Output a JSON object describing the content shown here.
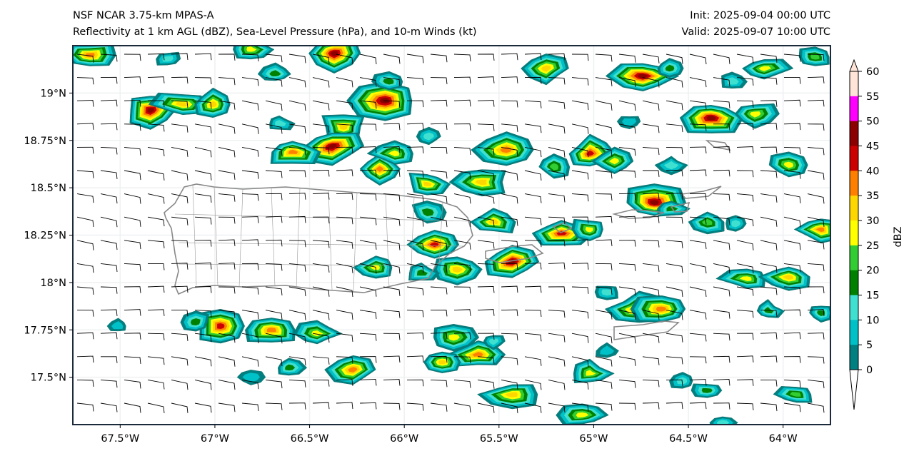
{
  "header": {
    "title_line1": "NSF NCAR 3.75-km MPAS-A",
    "title_line2": "Reflectivity at 1 km AGL (dBZ), Sea-Level Pressure (hPa), and 10-m Winds (kt)",
    "init": "Init: 2025-09-04 00:00 UTC",
    "valid": "Valid: 2025-09-07 10:00 UTC"
  },
  "map": {
    "lon_range": [
      -67.75,
      -63.75
    ],
    "lat_range": [
      17.25,
      19.25
    ],
    "lon_ticks": [
      -67.5,
      -67,
      -66.5,
      -66,
      -65.5,
      -65,
      -64.5,
      -64
    ],
    "lon_labels": [
      "67.5°W",
      "67°W",
      "66.5°W",
      "66°W",
      "65.5°W",
      "65°W",
      "64.5°W",
      "64°W"
    ],
    "lat_ticks": [
      19,
      18.75,
      18.5,
      18.25,
      18,
      17.75,
      17.5
    ],
    "lat_labels": [
      "19°N",
      "18.75°N",
      "18.5°N",
      "18.25°N",
      "18°N",
      "17.75°N",
      "17.5°N"
    ],
    "reflectivity_cells": [
      [
        -67.66,
        19.2,
        35
      ],
      [
        -67.34,
        18.91,
        45
      ],
      [
        -67.17,
        18.94,
        30
      ],
      [
        -67.01,
        18.94,
        30
      ],
      [
        -67.25,
        19.18,
        10
      ],
      [
        -66.81,
        19.23,
        25
      ],
      [
        -66.68,
        19.1,
        15
      ],
      [
        -66.37,
        19.21,
        45
      ],
      [
        -66.1,
        18.96,
        45
      ],
      [
        -66.08,
        19.06,
        15
      ],
      [
        -66.32,
        18.82,
        30
      ],
      [
        -66.38,
        18.72,
        45
      ],
      [
        -66.59,
        18.69,
        35
      ],
      [
        -66.66,
        18.84,
        10
      ],
      [
        -66.13,
        18.6,
        35
      ],
      [
        -66.05,
        18.68,
        25
      ],
      [
        -65.88,
        18.52,
        30
      ],
      [
        -65.87,
        18.77,
        10
      ],
      [
        -65.59,
        18.53,
        30
      ],
      [
        -65.46,
        18.7,
        35
      ],
      [
        -65.25,
        19.13,
        30
      ],
      [
        -65.21,
        18.61,
        20
      ],
      [
        -65.02,
        18.68,
        40
      ],
      [
        -64.89,
        18.64,
        25
      ],
      [
        -64.74,
        19.09,
        45
      ],
      [
        -64.6,
        19.13,
        15
      ],
      [
        -64.1,
        19.13,
        25
      ],
      [
        -63.83,
        19.19,
        20
      ],
      [
        -64.38,
        18.87,
        45
      ],
      [
        -64.15,
        18.89,
        25
      ],
      [
        -64.27,
        19.06,
        10
      ],
      [
        -63.97,
        18.62,
        25
      ],
      [
        -64.68,
        18.42,
        45
      ],
      [
        -64.59,
        18.39,
        15
      ],
      [
        -64.4,
        18.32,
        20
      ],
      [
        -64.25,
        18.31,
        10
      ],
      [
        -63.8,
        18.28,
        35
      ],
      [
        -65.88,
        18.37,
        15
      ],
      [
        -65.53,
        18.32,
        30
      ],
      [
        -65.17,
        18.26,
        40
      ],
      [
        -65.02,
        18.28,
        25
      ],
      [
        -65.84,
        18.2,
        40
      ],
      [
        -65.72,
        18.07,
        30
      ],
      [
        -66.15,
        18.08,
        25
      ],
      [
        -65.91,
        18.05,
        15
      ],
      [
        -65.43,
        18.11,
        45
      ],
      [
        -64.76,
        17.86,
        35
      ],
      [
        -64.64,
        17.86,
        35
      ],
      [
        -64.93,
        17.95,
        10
      ],
      [
        -64.19,
        18.02,
        25
      ],
      [
        -63.97,
        18.03,
        30
      ],
      [
        -64.08,
        17.85,
        15
      ],
      [
        -63.8,
        17.84,
        15
      ],
      [
        -66.97,
        17.77,
        40
      ],
      [
        -67.1,
        17.79,
        15
      ],
      [
        -66.7,
        17.75,
        35
      ],
      [
        -66.46,
        17.73,
        25
      ],
      [
        -65.74,
        17.71,
        25
      ],
      [
        -65.61,
        17.62,
        35
      ],
      [
        -65.8,
        17.58,
        30
      ],
      [
        -65.53,
        17.69,
        10
      ],
      [
        -66.27,
        17.54,
        35
      ],
      [
        -66.61,
        17.55,
        15
      ],
      [
        -66.81,
        17.5,
        5
      ],
      [
        -65.43,
        17.41,
        30
      ],
      [
        -65.02,
        17.52,
        25
      ],
      [
        -65.06,
        17.3,
        25
      ],
      [
        -63.93,
        17.41,
        20
      ],
      [
        -64.53,
        17.48,
        10
      ],
      [
        -64.4,
        17.43,
        15
      ],
      [
        -64.93,
        17.64,
        5
      ],
      [
        -67.51,
        17.77,
        5
      ],
      [
        -64.81,
        18.85,
        5
      ],
      [
        -64.59,
        18.62,
        10
      ],
      [
        -64.32,
        17.26,
        10
      ]
    ]
  },
  "colorbar": {
    "label": "dBZ",
    "ticks": [
      "0",
      "5",
      "10",
      "15",
      "20",
      "25",
      "30",
      "35",
      "40",
      "45",
      "50",
      "55",
      "60"
    ],
    "colors": [
      "#008080",
      "#00c0c8",
      "#40e0d0",
      "#008000",
      "#32cd32",
      "#ffff00",
      "#ffd700",
      "#ff8000",
      "#cc0000",
      "#8b0000",
      "#ff00ff",
      "#ffe4d8"
    ]
  }
}
